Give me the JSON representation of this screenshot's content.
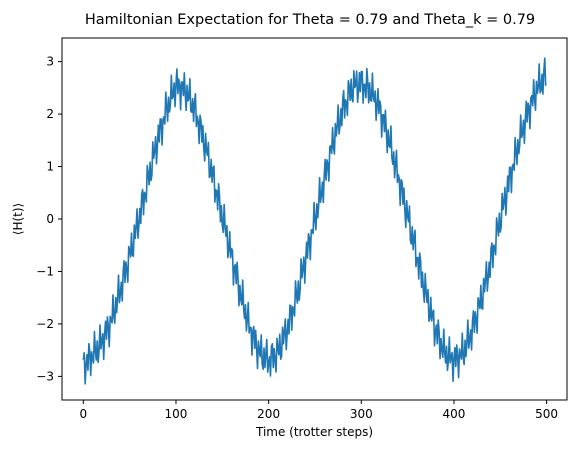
{
  "chart_data": {
    "type": "line",
    "title": "Hamiltonian Expectation for Theta = 0.79 and Theta_k = 0.79",
    "xlabel": "Time (trotter steps)",
    "ylabel": "⟨H(t)⟩",
    "xlim": [
      -23,
      522
    ],
    "ylim": [
      -3.45,
      3.45
    ],
    "xticks": [
      0,
      100,
      200,
      300,
      400,
      500
    ],
    "yticks": [
      -3,
      -2,
      -1,
      0,
      1,
      2,
      3
    ],
    "grid": false,
    "series": [
      {
        "color": "#1f77b4",
        "x": [
          0,
          10,
          20,
          30,
          40,
          50,
          60,
          70,
          80,
          90,
          100,
          110,
          120,
          130,
          140,
          150,
          160,
          170,
          180,
          190,
          200,
          210,
          220,
          230,
          240,
          250,
          260,
          270,
          280,
          290,
          300,
          310,
          320,
          330,
          340,
          350,
          360,
          370,
          380,
          390,
          400,
          410,
          420,
          430,
          440,
          450,
          460,
          470,
          480,
          490,
          499
        ],
        "y": [
          -2.8,
          -2.6,
          -2.35,
          -1.95,
          -1.35,
          -0.7,
          0.0,
          0.75,
          1.5,
          2.1,
          2.55,
          2.45,
          2.1,
          1.5,
          0.8,
          0.05,
          -0.7,
          -1.45,
          -2.1,
          -2.55,
          -2.7,
          -2.55,
          -2.1,
          -1.5,
          -0.75,
          0.0,
          0.75,
          1.5,
          2.1,
          2.5,
          2.6,
          2.45,
          2.1,
          1.5,
          0.8,
          0.05,
          -0.7,
          -1.45,
          -2.1,
          -2.55,
          -2.7,
          -2.55,
          -2.1,
          -1.5,
          -0.8,
          0.0,
          0.75,
          1.45,
          2.05,
          2.5,
          2.75
        ]
      }
    ]
  }
}
